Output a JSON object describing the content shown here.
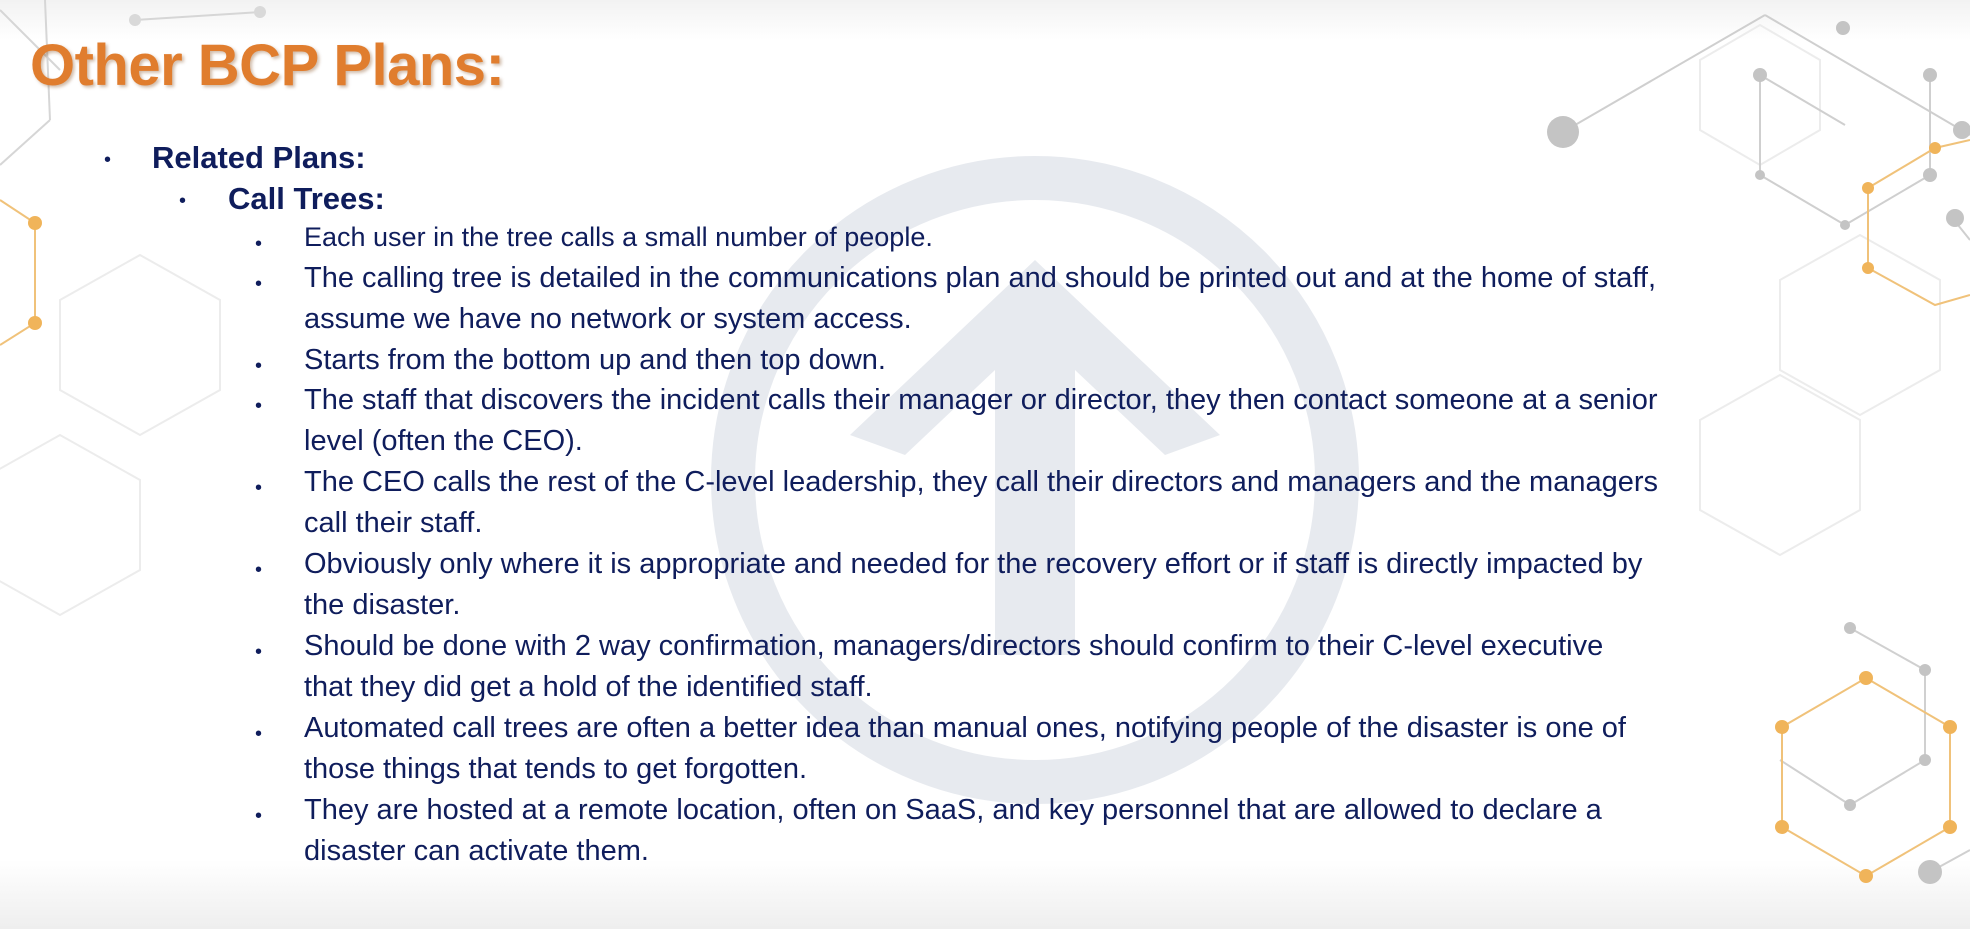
{
  "slide": {
    "title": "Other BCP Plans:",
    "level1_label": "Related Plans:",
    "level2_label": "Call Trees:",
    "bullets": [
      {
        "lines": [
          "Each user in the tree calls a small number of people."
        ]
      },
      {
        "lines": [
          "The calling tree is detailed in the communications plan and should be printed out and at the home of staff,",
          "assume we have no network or system access."
        ]
      },
      {
        "lines": [
          "Starts from the bottom up and then top down."
        ]
      },
      {
        "lines": [
          "The staff that discovers the incident calls their manager or director, they then contact someone at a senior",
          "level (often the CEO)."
        ]
      },
      {
        "lines": [
          "The CEO calls the rest of the C-level leadership, they call their directors and managers and the managers",
          "call their staff."
        ]
      },
      {
        "lines": [
          "Obviously only where it is appropriate and needed for the recovery effort or if staff is directly impacted by",
          "the disaster."
        ]
      },
      {
        "lines": [
          "Should be done with 2 way confirmation, managers/directors should confirm to their C-level executive",
          "that they did get a hold of the identified staff."
        ]
      },
      {
        "lines": [
          "Automated call trees are often a better idea than manual ones, notifying people of the disaster is one of",
          "those things that tends to get forgotten."
        ]
      },
      {
        "lines": [
          "They are hosted at a remote location, often on SaaS, and key personnel that are allowed to declare a",
          "disaster can activate them."
        ]
      }
    ]
  },
  "theme": {
    "title_color": "#e07d2e",
    "text_color": "#0f1d5c",
    "watermark_color": "#dfe3ea",
    "network_gray": "#c8c8c8",
    "network_orange": "#f0b45a"
  },
  "icons": {
    "bullet": "•",
    "watermark": "circle-arrow-logo-watermark",
    "background": "network-hexagon-pattern"
  }
}
